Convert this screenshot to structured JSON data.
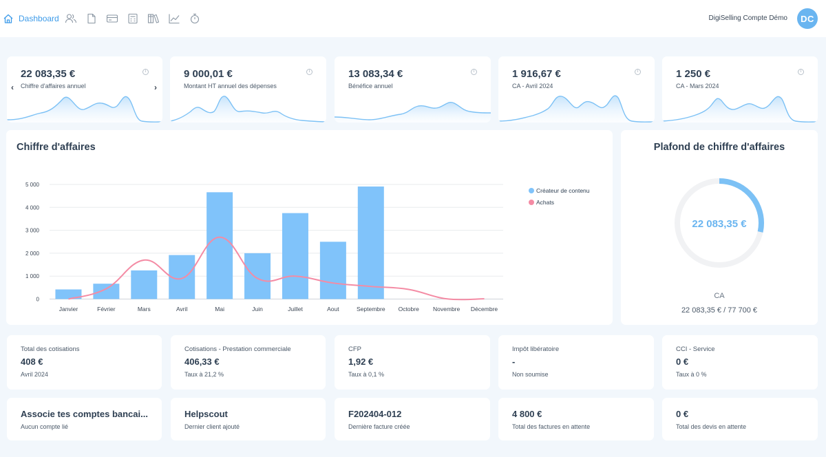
{
  "nav": {
    "home_label": "Dashboard",
    "icons": [
      "users-icon",
      "document-icon",
      "card-icon",
      "calculator-icon",
      "library-icon",
      "chart-icon",
      "timer-icon"
    ],
    "account_name": "DigiSelling Compte Démo",
    "avatar_initials": "DC"
  },
  "colors": {
    "accent": "#3d9be9",
    "bar": "#80c3fa",
    "line": "#f48ba4",
    "spark": "#7cc1f5",
    "track": "#f1f2f4"
  },
  "kpis": [
    {
      "value": "22 083,35 €",
      "label": "Chiffre d'affaires annuel"
    },
    {
      "value": "9 000,01 €",
      "label": "Montant HT annuel des dépenses"
    },
    {
      "value": "13 083,34 €",
      "label": "Bénéfice annuel"
    },
    {
      "value": "1 916,67 €",
      "label": "CA - Avril 2024"
    },
    {
      "value": "1 250 €",
      "label": "CA - Mars 2024"
    }
  ],
  "kpi_nav": {
    "prev": "‹",
    "next": "›"
  },
  "revenue_chart": {
    "title": "Chiffre d'affaires",
    "legend": [
      "Créateur de contenu",
      "Achats"
    ]
  },
  "chart_data": {
    "type": "bar",
    "categories": [
      "Janvier",
      "Février",
      "Mars",
      "Avril",
      "Mai",
      "Juin",
      "Juillet",
      "Aout",
      "Septembre",
      "Octobre",
      "Novembre",
      "Décembre"
    ],
    "series": [
      {
        "name": "Créateur de contenu",
        "type": "bar",
        "values": [
          420,
          670,
          1250,
          1920,
          4660,
          2000,
          3750,
          2500,
          4910,
          0,
          0,
          0
        ]
      },
      {
        "name": "Achats",
        "type": "line",
        "values": [
          0,
          450,
          1700,
          900,
          2700,
          900,
          1000,
          700,
          550,
          420,
          10,
          10
        ]
      }
    ],
    "yticks": [
      "0",
      "1 000",
      "2 000",
      "3 000",
      "4 000",
      "5 000"
    ],
    "ylim": [
      0,
      5000
    ],
    "grid": true,
    "legend_position": "top-right"
  },
  "ceiling": {
    "title": "Plafond de chiffre d'affaires",
    "center_value": "22 083,35 €",
    "caption": "CA",
    "detail": "22 083,35 € / 77 700 €",
    "fraction": 0.2842
  },
  "stats": [
    {
      "label": "Total des cotisations",
      "value": "408 €",
      "sub": "Avril 2024"
    },
    {
      "label": "Cotisations - Prestation commerciale",
      "value": "406,33 €",
      "sub": "Taux à 21,2 %"
    },
    {
      "label": "CFP",
      "value": "1,92 €",
      "sub": "Taux à 0,1 %"
    },
    {
      "label": "Impôt libératoire",
      "value": "-",
      "sub": "Non soumise"
    },
    {
      "label": "CCI - Service",
      "value": "0 €",
      "sub": "Taux à 0 %"
    }
  ],
  "bottom": [
    {
      "title": "Associe tes comptes bancai...",
      "sub": "Aucun compte lié"
    },
    {
      "title": "Helpscout",
      "sub": "Dernier client ajouté"
    },
    {
      "title": "F202404-012",
      "sub": "Dernière facture créée"
    },
    {
      "title": "4 800 €",
      "sub": "Total des factures en attente"
    },
    {
      "title": "0 €",
      "sub": "Total des devis en attente"
    }
  ]
}
